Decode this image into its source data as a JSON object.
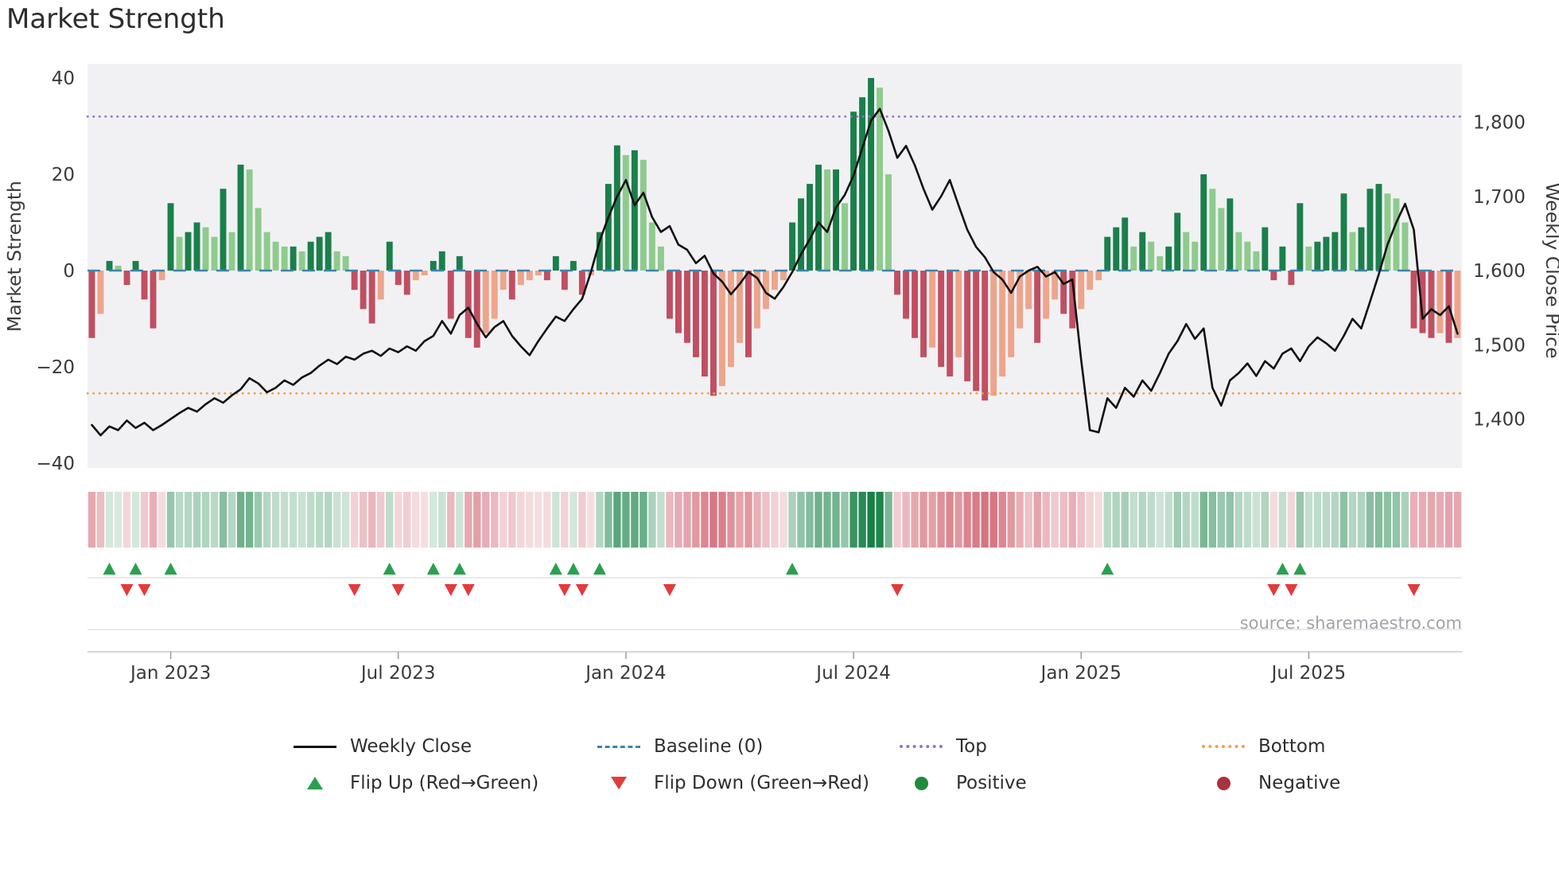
{
  "title": "Market Strength",
  "source": "source: sharemaestro.com",
  "axes": {
    "left_label": "Market Strength",
    "right_label": "Weekly Close Price",
    "left_ticks": [
      {
        "label": "40",
        "value": 40
      },
      {
        "label": "20",
        "value": 20
      },
      {
        "label": "0",
        "value": 0
      },
      {
        "label": "−20",
        "value": -20
      },
      {
        "label": "−40",
        "value": -40
      }
    ],
    "right_ticks": [
      {
        "label": "1,800",
        "value": 1800
      },
      {
        "label": "1,700",
        "value": 1700
      },
      {
        "label": "1,600",
        "value": 1600
      },
      {
        "label": "1,500",
        "value": 1500
      },
      {
        "label": "1,400",
        "value": 1400
      }
    ],
    "x_ticks": [
      {
        "label": "Jan 2023",
        "index": 9
      },
      {
        "label": "Jul 2023",
        "index": 35
      },
      {
        "label": "Jan 2024",
        "index": 61
      },
      {
        "label": "Jul 2024",
        "index": 87
      },
      {
        "label": "Jan 2025",
        "index": 113
      },
      {
        "label": "Jul 2025",
        "index": 139
      }
    ]
  },
  "legend": [
    {
      "label": "Weekly Close",
      "swatch": "line-solid-black"
    },
    {
      "label": "Baseline (0)",
      "swatch": "line-dashed-blue"
    },
    {
      "label": "Top",
      "swatch": "line-dotted-purple"
    },
    {
      "label": "Bottom",
      "swatch": "line-dotted-orange"
    },
    {
      "label": "Flip Up (Red→Green)",
      "swatch": "triangle-up-green"
    },
    {
      "label": "Flip Down (Green→Red)",
      "swatch": "triangle-down-red"
    },
    {
      "label": "Positive",
      "swatch": "dot-green"
    },
    {
      "label": "Negative",
      "swatch": "dot-darkred"
    }
  ],
  "chart_data": {
    "type": "combo: strength bars + weekly close line + heatmap strip + flip event markers",
    "title": "Market Strength",
    "x_unit": "weekly (Nov 2022 – Oct 2025)",
    "x_count": 157,
    "strength_range": [
      -40,
      40
    ],
    "price_range": [
      1400,
      1800
    ],
    "baseline": 0,
    "top_threshold": 32,
    "bottom_threshold": -25.5,
    "strength": [
      -14,
      -9,
      2,
      1,
      -3,
      2,
      -6,
      -12,
      -2,
      14,
      7,
      8,
      10,
      9,
      7,
      17,
      8,
      22,
      21,
      13,
      8,
      6,
      5,
      5,
      4,
      6,
      7,
      8,
      4,
      3,
      -4,
      -8,
      -11,
      -6,
      6,
      -3,
      -5,
      -2,
      -1,
      2,
      4,
      -10,
      3,
      -14,
      -16,
      -13,
      -10,
      -4,
      -6,
      -3,
      -2,
      -1,
      -2,
      3,
      -4,
      2,
      -5,
      -1,
      8,
      18,
      26,
      24,
      25,
      23,
      10,
      5,
      -10,
      -13,
      -15,
      -18,
      -22,
      -26,
      -24,
      -20,
      -15,
      -18,
      -12,
      -8,
      -4,
      -2,
      10,
      15,
      18,
      22,
      21,
      21,
      14,
      33,
      36,
      40,
      38,
      20,
      -5,
      -10,
      -14,
      -18,
      -16,
      -20,
      -22,
      -18,
      -23,
      -25,
      -27,
      -26,
      -22,
      -18,
      -12,
      -8,
      -15,
      -10,
      -6,
      -9,
      -12,
      -8,
      -4,
      -2,
      7,
      9,
      11,
      5,
      8,
      6,
      3,
      5,
      12,
      8,
      6,
      20,
      17,
      13,
      15,
      8,
      6,
      4,
      9,
      -2,
      5,
      -3,
      14,
      5,
      6,
      7,
      8,
      16,
      8,
      9,
      17,
      18,
      16,
      15,
      10,
      -12,
      -13,
      -14,
      -13,
      -15,
      -14
    ],
    "weekly_close": [
      1392,
      1378,
      1390,
      1385,
      1398,
      1388,
      1395,
      1385,
      1392,
      1400,
      1408,
      1415,
      1410,
      1420,
      1428,
      1422,
      1432,
      1440,
      1455,
      1448,
      1436,
      1442,
      1452,
      1446,
      1456,
      1462,
      1472,
      1480,
      1474,
      1484,
      1480,
      1488,
      1492,
      1485,
      1495,
      1490,
      1498,
      1492,
      1505,
      1512,
      1532,
      1515,
      1540,
      1550,
      1528,
      1510,
      1524,
      1532,
      1512,
      1498,
      1486,
      1505,
      1522,
      1538,
      1532,
      1548,
      1562,
      1598,
      1640,
      1672,
      1700,
      1722,
      1688,
      1705,
      1672,
      1652,
      1660,
      1635,
      1628,
      1610,
      1620,
      1596,
      1585,
      1568,
      1582,
      1598,
      1590,
      1570,
      1562,
      1578,
      1598,
      1622,
      1642,
      1665,
      1652,
      1685,
      1702,
      1728,
      1765,
      1802,
      1818,
      1788,
      1752,
      1768,
      1742,
      1710,
      1682,
      1700,
      1722,
      1688,
      1655,
      1632,
      1618,
      1598,
      1588,
      1570,
      1592,
      1600,
      1605,
      1592,
      1598,
      1582,
      1588,
      1480,
      1385,
      1382,
      1428,
      1415,
      1442,
      1430,
      1452,
      1438,
      1462,
      1488,
      1505,
      1528,
      1508,
      1522,
      1442,
      1418,
      1452,
      1462,
      1475,
      1458,
      1478,
      1468,
      1488,
      1495,
      1478,
      1498,
      1510,
      1502,
      1492,
      1512,
      1535,
      1522,
      1558,
      1595,
      1635,
      1665,
      1690,
      1655,
      1535,
      1548,
      1540,
      1552,
      1515
    ],
    "flip_up_weeks": [
      2,
      5,
      9,
      34,
      39,
      42,
      53,
      55,
      58,
      80,
      116,
      136,
      138
    ],
    "flip_down_weeks": [
      4,
      6,
      30,
      35,
      41,
      43,
      54,
      56,
      66,
      92,
      135,
      137,
      151
    ]
  },
  "colors": {
    "plot_bg": "#f1f1f3",
    "bar_green_dark": "#1a7f4b",
    "bar_green_light": "#8ecb8d",
    "bar_red_dark": "#c04f62",
    "bar_red_light": "#eda58c",
    "heatmap_green": "22,128,70",
    "heatmap_red": "198,62,78",
    "line": "#111111",
    "baseline": "#3d84ad",
    "top": "#9a6fc0",
    "bottom": "#f0a04a",
    "flip_up": "#2aa04f",
    "flip_down": "#e23b3b",
    "positive_dot": "#1f8a3b",
    "negative_dot": "#a83240"
  }
}
